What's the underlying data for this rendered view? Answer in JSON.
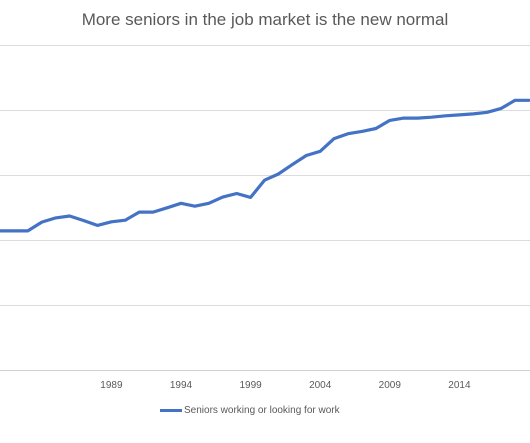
{
  "chart_data": {
    "type": "line",
    "title": "More seniors in the job market is the new normal",
    "xlabel": "",
    "ylabel": "",
    "x_ticks": [
      "1989",
      "1994",
      "1999",
      "2004",
      "2009",
      "2014"
    ],
    "xlim": [
      1981,
      2019
    ],
    "ylim": [
      0,
      100
    ],
    "grid": true,
    "gridlines": [
      0,
      20,
      40,
      60,
      80,
      100
    ],
    "legend_position": "bottom",
    "color": "#4472C4",
    "series": [
      {
        "name": "Seniors working or looking for work",
        "x": [
          1981,
          1982,
          1983,
          1984,
          1985,
          1986,
          1987,
          1988,
          1989,
          1990,
          1991,
          1992,
          1993,
          1994,
          1995,
          1996,
          1997,
          1998,
          1999,
          2000,
          2001,
          2002,
          2003,
          2004,
          2005,
          2006,
          2007,
          2008,
          2009,
          2010,
          2011,
          2012,
          2013,
          2014,
          2015,
          2016,
          2017,
          2018,
          2019
        ],
        "values": [
          42.8,
          42.8,
          42.8,
          45.5,
          46.8,
          47.4,
          46.0,
          44.5,
          45.6,
          46.1,
          48.6,
          48.6,
          49.9,
          51.3,
          50.4,
          51.3,
          53.2,
          54.3,
          53.1,
          58.4,
          60.3,
          63.2,
          66.0,
          67.3,
          71.2,
          72.7,
          73.4,
          74.3,
          76.8,
          77.5,
          77.5,
          77.8,
          78.2,
          78.5,
          78.8,
          79.3,
          80.5,
          83.0,
          83.0
        ]
      }
    ]
  }
}
